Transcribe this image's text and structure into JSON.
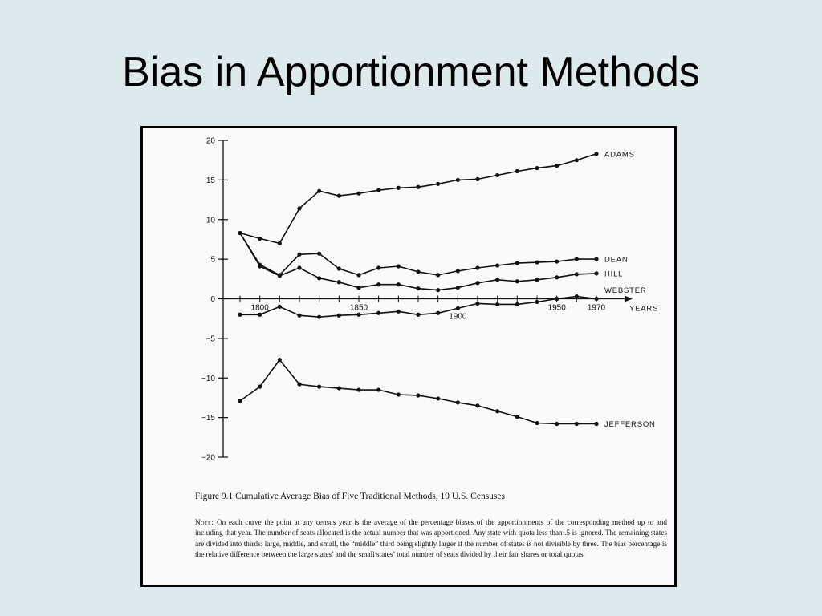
{
  "slide": {
    "title": "Bias in Apportionment Methods"
  },
  "figure": {
    "caption": "Figure 9.1  Cumulative Average Bias of Five Traditional Methods, 19 U.S. Censuses",
    "note_label": "Note:",
    "note_text": "On each curve the point at any census year is the average of the percentage biases of the apportionments of the corresponding method up to and including that year. The number of seats allocated is the actual number that was apportioned. Any state with quota less than .5 is ignored. The remaining states are divided into thirds: large, middle, and small, the “middle” third being slightly larger if the number of states is not divisible by three. The bias percentage is the relative difference between the large states’ and the small states’ total number of seats divided by their fair shares or total quotas."
  },
  "chart_data": {
    "type": "line",
    "title": "Cumulative Average Bias of Five Traditional Methods, 19 U.S. Censuses",
    "xlabel": "YEARS",
    "ylabel": "",
    "x": [
      1790,
      1800,
      1810,
      1820,
      1830,
      1840,
      1850,
      1860,
      1870,
      1880,
      1890,
      1900,
      1910,
      1920,
      1930,
      1940,
      1950,
      1960,
      1970
    ],
    "x_tick_labels": [
      {
        "value": 1800,
        "label": "1800"
      },
      {
        "value": 1850,
        "label": "1850"
      },
      {
        "value": 1900,
        "label": "1900"
      },
      {
        "value": 1950,
        "label": "1950"
      },
      {
        "value": 1970,
        "label": "1970"
      }
    ],
    "y_ticks": [
      20,
      15,
      10,
      5,
      0,
      -5,
      -10,
      -15,
      -20
    ],
    "y_tick_labels": [
      "20",
      "15",
      "10",
      "5",
      "0",
      "−5",
      "−10",
      "−15",
      "−20"
    ],
    "ylim": [
      -20,
      20
    ],
    "xlim": [
      1790,
      1970
    ],
    "grid": false,
    "legend": "labels at right end of each curve",
    "series": [
      {
        "name": "ADAMS",
        "values": [
          8.3,
          7.6,
          7.0,
          11.4,
          13.6,
          13.0,
          13.3,
          13.7,
          14.0,
          14.1,
          14.5,
          15.0,
          15.1,
          15.6,
          16.1,
          16.5,
          16.8,
          17.5,
          18.3
        ]
      },
      {
        "name": "DEAN",
        "values": [
          8.3,
          4.3,
          3.0,
          5.6,
          5.7,
          3.8,
          3.0,
          3.9,
          4.1,
          3.4,
          3.0,
          3.5,
          3.9,
          4.2,
          4.5,
          4.6,
          4.7,
          5.0,
          5.0
        ]
      },
      {
        "name": "HILL",
        "values": [
          8.3,
          4.1,
          2.9,
          3.9,
          2.6,
          2.1,
          1.4,
          1.8,
          1.8,
          1.3,
          1.1,
          1.4,
          2.0,
          2.4,
          2.2,
          2.4,
          2.7,
          3.1,
          3.2
        ]
      },
      {
        "name": "WEBSTER",
        "values": [
          -2.0,
          -2.0,
          -1.0,
          -2.1,
          -2.3,
          -2.1,
          -2.0,
          -1.8,
          -1.6,
          -2.0,
          -1.8,
          -1.2,
          -0.6,
          -0.7,
          -0.7,
          -0.4,
          0.0,
          0.3,
          0.0
        ]
      },
      {
        "name": "JEFFERSON",
        "values": [
          -12.9,
          -11.1,
          -7.7,
          -10.8,
          -11.1,
          -11.3,
          -11.5,
          -11.5,
          -12.1,
          -12.2,
          -12.6,
          -13.1,
          -13.5,
          -14.2,
          -14.9,
          -15.7,
          -15.8,
          -15.8,
          -15.8
        ]
      }
    ]
  }
}
